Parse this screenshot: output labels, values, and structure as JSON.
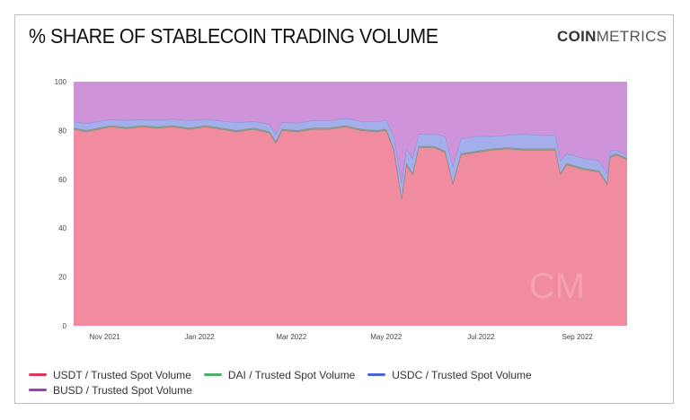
{
  "title": "% SHARE OF STABLECOIN TRADING VOLUME",
  "logo": {
    "bold": "COIN",
    "light": "METRICS",
    "watermark": "CM"
  },
  "chart_data": {
    "type": "area",
    "stacked": true,
    "title": "% SHARE OF STABLECOIN TRADING VOLUME",
    "ylim": [
      0,
      100
    ],
    "yticks": [
      0,
      20,
      40,
      60,
      80,
      100
    ],
    "xticks": [
      {
        "date": "2021-11-01",
        "label": "Nov 2021"
      },
      {
        "date": "2022-01-01",
        "label": "Jan 2022"
      },
      {
        "date": "2022-03-01",
        "label": "Mar 2022"
      },
      {
        "date": "2022-05-01",
        "label": "May 2022"
      },
      {
        "date": "2022-07-01",
        "label": "Jul 2022"
      },
      {
        "date": "2022-09-01",
        "label": "Sep 2022"
      }
    ],
    "xlim": [
      "2021-10-12",
      "2022-10-03"
    ],
    "grid": false,
    "legend_position": "bottom",
    "series": [
      {
        "name": "USDT / Trusted Spot Volume",
        "color": "#e0355a",
        "fill": "#f08ba0"
      },
      {
        "name": "DAI / Trusted Spot Volume",
        "color": "#4caf6a",
        "fill": "#8fa08a"
      },
      {
        "name": "USDC / Trusted Spot Volume",
        "color": "#4a66d6",
        "fill": "#a4aeea"
      },
      {
        "name": "BUSD / Trusted Spot Volume",
        "color": "#9b3fbf",
        "fill": "#cf93d9"
      }
    ],
    "x": [
      "2021-10-12",
      "2021-10-20",
      "2021-10-28",
      "2021-11-05",
      "2021-11-15",
      "2021-11-25",
      "2021-12-05",
      "2021-12-15",
      "2021-12-25",
      "2022-01-05",
      "2022-01-15",
      "2022-01-25",
      "2022-02-05",
      "2022-02-15",
      "2022-02-19",
      "2022-02-23",
      "2022-03-05",
      "2022-03-15",
      "2022-03-25",
      "2022-04-05",
      "2022-04-15",
      "2022-04-25",
      "2022-05-01",
      "2022-05-06",
      "2022-05-11",
      "2022-05-14",
      "2022-05-18",
      "2022-05-22",
      "2022-06-01",
      "2022-06-08",
      "2022-06-13",
      "2022-06-18",
      "2022-06-28",
      "2022-07-08",
      "2022-07-18",
      "2022-07-28",
      "2022-08-08",
      "2022-08-18",
      "2022-08-21",
      "2022-08-25",
      "2022-09-05",
      "2022-09-15",
      "2022-09-20",
      "2022-09-22",
      "2022-09-26",
      "2022-10-03"
    ],
    "values": {
      "USDT": [
        80.5,
        79.5,
        80.5,
        81.5,
        80.8,
        81.5,
        81,
        81.5,
        80.5,
        81.5,
        80.5,
        79.5,
        80.5,
        79,
        75,
        80,
        79.5,
        80.5,
        80.5,
        81.5,
        80,
        79.5,
        80,
        72,
        52,
        66,
        62,
        73,
        73,
        71,
        58,
        70,
        71,
        72,
        72.5,
        72,
        72,
        72,
        62,
        66,
        64,
        63,
        58,
        69,
        70,
        68
      ],
      "DAI": [
        0.6,
        0.6,
        0.6,
        0.6,
        0.6,
        0.6,
        0.6,
        0.6,
        0.6,
        0.6,
        0.6,
        0.6,
        0.6,
        0.6,
        0.6,
        0.6,
        0.6,
        0.6,
        0.6,
        0.6,
        0.6,
        0.6,
        0.6,
        0.6,
        0.6,
        0.6,
        0.6,
        0.6,
        0.6,
        0.6,
        0.6,
        0.6,
        0.6,
        0.6,
        0.6,
        0.6,
        0.6,
        0.6,
        0.6,
        0.6,
        0.6,
        0.6,
        0.6,
        0.6,
        0.6,
        0.6
      ],
      "USDC": [
        2.5,
        2.8,
        2.6,
        2.5,
        2.8,
        2.5,
        2.7,
        2.6,
        3,
        2.6,
        2.8,
        3.2,
        2.6,
        3,
        3,
        2.8,
        3,
        3,
        3,
        3,
        3.2,
        3.5,
        3.8,
        5,
        6,
        6,
        6,
        5,
        5,
        6,
        7,
        6,
        6,
        5,
        5,
        6,
        5.5,
        5.5,
        5,
        4,
        4,
        4,
        4,
        2,
        1.5,
        1
      ],
      "BUSD": [
        16.4,
        17.1,
        16.3,
        15.4,
        15.8,
        15.4,
        15.7,
        15.3,
        15.9,
        15.3,
        16.1,
        16.7,
        16.3,
        17.4,
        21.4,
        16.6,
        16.9,
        15.9,
        15.9,
        14.9,
        16.2,
        16.4,
        15.6,
        22.4,
        41.4,
        27.4,
        31.4,
        21.4,
        21.4,
        22.4,
        34.4,
        23.4,
        22.4,
        22.4,
        21.9,
        21.4,
        21.9,
        21.9,
        32.4,
        29.4,
        31.4,
        32.4,
        37.4,
        28.4,
        27.9,
        30.4
      ]
    }
  }
}
